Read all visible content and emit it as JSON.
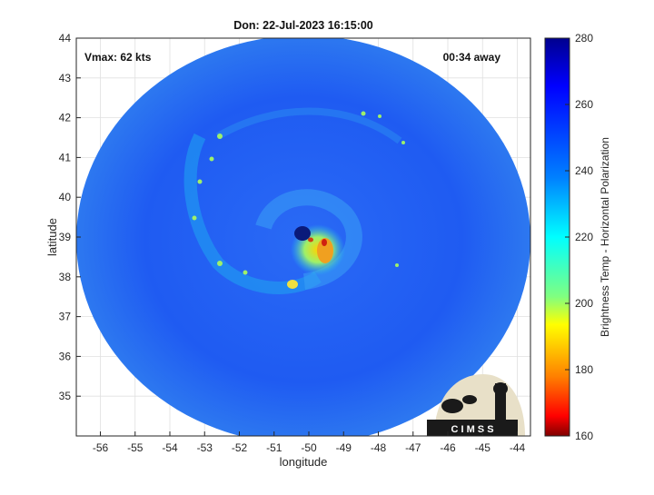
{
  "title": "Don: 22-Jul-2023 16:15:00",
  "vmax_label": "Vmax: 62 kts",
  "time_label": "00:34 away",
  "xlabel": "longitude",
  "ylabel": "latitude",
  "x_ticks": [
    "-56",
    "-55",
    "-54",
    "-53",
    "-52",
    "-51",
    "-50",
    "-49",
    "-48",
    "-47",
    "-46",
    "-45",
    "-44"
  ],
  "y_ticks": [
    "44",
    "43",
    "42",
    "41",
    "40",
    "39",
    "38",
    "37",
    "36",
    "35"
  ],
  "colorbar": {
    "label": "Brightness Temp - Horizontal Polarization",
    "ticks": [
      "280",
      "260",
      "240",
      "220",
      "200",
      "180",
      "160"
    ],
    "range": [
      160,
      280
    ]
  },
  "logo_text": "C I M S S",
  "colors": {
    "background_scene": "#1f5bf2",
    "eye": "#0a1a7a",
    "eyewall": "#f0d020",
    "hot_core": "#d02010"
  }
}
